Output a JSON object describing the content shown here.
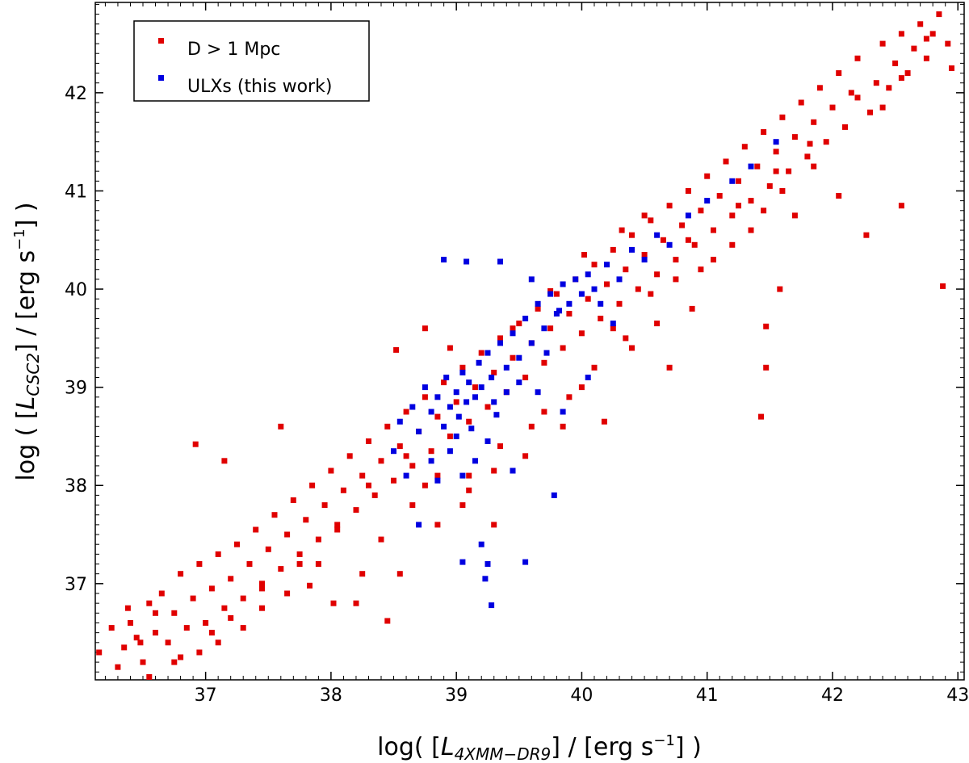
{
  "chart_data": {
    "type": "scatter",
    "xlabel": {
      "pre": "log( [",
      "var": "L",
      "sub": "4XMM−DR9",
      "mid": "] / [erg s",
      "sup": "−1",
      "post": "] )"
    },
    "ylabel": {
      "pre": "log ( [",
      "var": "L",
      "sub": "CSC2",
      "mid": "] / [erg s",
      "sup": "−1",
      "post": "] )"
    },
    "xlim": [
      36.12,
      43.05
    ],
    "ylim": [
      36.02,
      42.92
    ],
    "xticks": [
      37,
      38,
      39,
      40,
      41,
      42,
      43
    ],
    "yticks": [
      37,
      38,
      39,
      40,
      41,
      42
    ],
    "grid": false,
    "legend_position": "top-left",
    "series": [
      {
        "name": "D > 1 Mpc",
        "color": "#e00000",
        "points": [
          [
            36.15,
            36.3
          ],
          [
            36.25,
            36.55
          ],
          [
            36.3,
            36.15
          ],
          [
            36.35,
            36.35
          ],
          [
            36.4,
            36.6
          ],
          [
            36.45,
            36.45
          ],
          [
            36.5,
            36.2
          ],
          [
            36.55,
            36.8
          ],
          [
            36.6,
            36.5
          ],
          [
            36.65,
            36.9
          ],
          [
            36.7,
            36.4
          ],
          [
            36.75,
            36.7
          ],
          [
            36.8,
            37.1
          ],
          [
            36.85,
            36.55
          ],
          [
            36.9,
            36.85
          ],
          [
            36.95,
            37.2
          ],
          [
            36.92,
            38.42
          ],
          [
            37.0,
            36.6
          ],
          [
            37.05,
            36.95
          ],
          [
            37.1,
            37.3
          ],
          [
            37.15,
            36.75
          ],
          [
            37.2,
            37.05
          ],
          [
            37.25,
            37.4
          ],
          [
            37.15,
            38.25
          ],
          [
            37.3,
            36.85
          ],
          [
            37.35,
            37.2
          ],
          [
            37.4,
            37.55
          ],
          [
            37.45,
            37.0
          ],
          [
            37.5,
            37.35
          ],
          [
            37.55,
            37.7
          ],
          [
            37.6,
            37.15
          ],
          [
            37.6,
            38.6
          ],
          [
            37.65,
            37.5
          ],
          [
            37.7,
            37.85
          ],
          [
            37.75,
            37.3
          ],
          [
            37.8,
            37.65
          ],
          [
            37.85,
            38.0
          ],
          [
            37.9,
            37.45
          ],
          [
            37.95,
            37.8
          ],
          [
            38.0,
            38.15
          ],
          [
            38.05,
            37.6
          ],
          [
            38.1,
            37.95
          ],
          [
            38.15,
            38.3
          ],
          [
            38.2,
            37.75
          ],
          [
            38.25,
            38.1
          ],
          [
            38.3,
            38.45
          ],
          [
            38.35,
            37.9
          ],
          [
            38.4,
            38.25
          ],
          [
            38.45,
            38.6
          ],
          [
            38.5,
            38.05
          ],
          [
            38.55,
            38.4
          ],
          [
            38.6,
            38.75
          ],
          [
            38.65,
            38.2
          ],
          [
            38.7,
            38.55
          ],
          [
            38.75,
            38.9
          ],
          [
            38.8,
            38.35
          ],
          [
            38.85,
            38.7
          ],
          [
            38.9,
            39.05
          ],
          [
            38.95,
            38.5
          ],
          [
            39.0,
            38.85
          ],
          [
            39.05,
            39.2
          ],
          [
            39.1,
            38.65
          ],
          [
            39.15,
            39.0
          ],
          [
            39.2,
            39.35
          ],
          [
            39.25,
            38.8
          ],
          [
            39.3,
            39.15
          ],
          [
            39.35,
            39.5
          ],
          [
            39.4,
            38.95
          ],
          [
            39.45,
            39.3
          ],
          [
            39.5,
            39.65
          ],
          [
            39.55,
            39.1
          ],
          [
            39.6,
            39.45
          ],
          [
            39.65,
            39.8
          ],
          [
            39.7,
            39.25
          ],
          [
            39.75,
            39.6
          ],
          [
            39.8,
            39.95
          ],
          [
            39.85,
            39.4
          ],
          [
            39.9,
            39.75
          ],
          [
            39.95,
            40.1
          ],
          [
            40.0,
            39.55
          ],
          [
            40.05,
            39.9
          ],
          [
            40.1,
            40.25
          ],
          [
            40.15,
            39.7
          ],
          [
            40.2,
            40.05
          ],
          [
            40.25,
            40.4
          ],
          [
            40.3,
            39.85
          ],
          [
            40.35,
            40.2
          ],
          [
            40.4,
            40.55
          ],
          [
            40.45,
            40.0
          ],
          [
            40.5,
            40.35
          ],
          [
            40.55,
            40.7
          ],
          [
            40.6,
            40.15
          ],
          [
            40.65,
            40.5
          ],
          [
            40.7,
            40.85
          ],
          [
            40.75,
            40.3
          ],
          [
            40.8,
            40.65
          ],
          [
            40.85,
            41.0
          ],
          [
            40.9,
            40.45
          ],
          [
            40.95,
            40.8
          ],
          [
            41.0,
            41.15
          ],
          [
            41.05,
            40.6
          ],
          [
            41.1,
            40.95
          ],
          [
            41.15,
            41.3
          ],
          [
            41.2,
            40.75
          ],
          [
            41.25,
            41.1
          ],
          [
            41.3,
            41.45
          ],
          [
            41.35,
            40.9
          ],
          [
            41.4,
            41.25
          ],
          [
            41.45,
            41.6
          ],
          [
            41.5,
            41.05
          ],
          [
            41.55,
            41.4
          ],
          [
            41.6,
            41.75
          ],
          [
            41.65,
            41.2
          ],
          [
            41.7,
            41.55
          ],
          [
            41.75,
            41.9
          ],
          [
            41.8,
            41.35
          ],
          [
            41.85,
            41.7
          ],
          [
            41.9,
            42.05
          ],
          [
            41.95,
            41.5
          ],
          [
            42.0,
            41.85
          ],
          [
            42.05,
            42.2
          ],
          [
            42.1,
            41.65
          ],
          [
            42.15,
            42.0
          ],
          [
            42.2,
            42.35
          ],
          [
            42.3,
            41.8
          ],
          [
            42.35,
            42.1
          ],
          [
            42.4,
            42.5
          ],
          [
            42.45,
            42.05
          ],
          [
            42.5,
            42.3
          ],
          [
            42.55,
            42.6
          ],
          [
            42.6,
            42.2
          ],
          [
            42.65,
            42.45
          ],
          [
            42.7,
            42.7
          ],
          [
            42.75,
            42.35
          ],
          [
            42.8,
            42.6
          ],
          [
            42.85,
            42.8
          ],
          [
            42.92,
            42.5
          ],
          [
            42.95,
            42.25
          ],
          [
            42.88,
            40.03
          ],
          [
            42.55,
            40.85
          ],
          [
            42.27,
            40.55
          ],
          [
            42.05,
            40.95
          ],
          [
            41.7,
            40.75
          ],
          [
            41.58,
            40.0
          ],
          [
            41.47,
            39.62
          ],
          [
            41.47,
            39.2
          ],
          [
            41.43,
            38.7
          ],
          [
            40.88,
            39.8
          ],
          [
            40.7,
            39.2
          ],
          [
            40.35,
            39.5
          ],
          [
            40.18,
            38.65
          ],
          [
            40.1,
            39.2
          ],
          [
            39.9,
            38.9
          ],
          [
            39.6,
            38.6
          ],
          [
            39.35,
            38.4
          ],
          [
            39.1,
            38.1
          ],
          [
            38.75,
            38.0
          ],
          [
            38.4,
            37.45
          ],
          [
            38.25,
            37.1
          ],
          [
            38.2,
            36.8
          ],
          [
            37.9,
            37.2
          ],
          [
            37.65,
            36.9
          ],
          [
            37.45,
            36.75
          ],
          [
            37.3,
            36.55
          ],
          [
            37.1,
            36.4
          ],
          [
            36.95,
            36.3
          ],
          [
            36.75,
            36.2
          ],
          [
            36.55,
            36.05
          ],
          [
            38.45,
            36.62
          ],
          [
            38.02,
            36.8
          ],
          [
            37.83,
            36.98
          ],
          [
            38.55,
            37.1
          ],
          [
            38.75,
            39.6
          ],
          [
            38.52,
            39.38
          ],
          [
            38.95,
            39.4
          ],
          [
            39.45,
            39.6
          ],
          [
            39.75,
            39.98
          ],
          [
            40.02,
            40.35
          ],
          [
            40.32,
            40.6
          ],
          [
            40.5,
            40.75
          ],
          [
            40.85,
            40.5
          ],
          [
            41.25,
            40.85
          ],
          [
            41.55,
            41.2
          ],
          [
            41.82,
            41.48
          ],
          [
            42.2,
            41.95
          ],
          [
            38.6,
            38.3
          ],
          [
            38.3,
            38.0
          ],
          [
            38.05,
            37.55
          ],
          [
            37.75,
            37.2
          ],
          [
            37.45,
            36.95
          ],
          [
            37.2,
            36.65
          ],
          [
            37.05,
            36.5
          ],
          [
            36.8,
            36.25
          ],
          [
            36.6,
            36.7
          ],
          [
            36.48,
            36.4
          ],
          [
            36.38,
            36.75
          ],
          [
            38.85,
            37.6
          ],
          [
            39.1,
            37.95
          ],
          [
            39.3,
            38.15
          ],
          [
            39.55,
            38.3
          ],
          [
            39.85,
            38.6
          ],
          [
            40.4,
            39.4
          ],
          [
            40.6,
            39.65
          ],
          [
            40.95,
            40.2
          ],
          [
            41.2,
            40.45
          ],
          [
            41.35,
            40.6
          ],
          [
            39.3,
            37.6
          ],
          [
            39.05,
            37.8
          ],
          [
            38.85,
            38.1
          ],
          [
            38.65,
            37.8
          ],
          [
            39.7,
            38.75
          ],
          [
            40.0,
            39.0
          ],
          [
            40.25,
            39.6
          ],
          [
            40.55,
            39.95
          ],
          [
            40.75,
            40.1
          ],
          [
            41.05,
            40.3
          ],
          [
            41.45,
            40.8
          ],
          [
            41.6,
            41.0
          ],
          [
            41.85,
            41.25
          ],
          [
            42.4,
            41.85
          ],
          [
            42.55,
            42.15
          ],
          [
            42.75,
            42.55
          ]
        ]
      },
      {
        "name": "ULXs (this work)",
        "color": "#0000e0",
        "points": [
          [
            38.55,
            38.65
          ],
          [
            38.65,
            38.8
          ],
          [
            38.7,
            38.55
          ],
          [
            38.75,
            39.0
          ],
          [
            38.8,
            38.75
          ],
          [
            38.85,
            38.9
          ],
          [
            38.9,
            38.6
          ],
          [
            38.92,
            39.1
          ],
          [
            38.95,
            38.8
          ],
          [
            39.0,
            38.95
          ],
          [
            39.02,
            38.7
          ],
          [
            39.05,
            39.15
          ],
          [
            39.08,
            38.85
          ],
          [
            39.1,
            39.05
          ],
          [
            39.15,
            38.9
          ],
          [
            39.18,
            39.25
          ],
          [
            39.2,
            39.0
          ],
          [
            39.25,
            39.35
          ],
          [
            39.28,
            39.1
          ],
          [
            39.3,
            38.85
          ],
          [
            39.35,
            39.45
          ],
          [
            39.4,
            39.2
          ],
          [
            39.45,
            39.55
          ],
          [
            39.5,
            39.3
          ],
          [
            39.55,
            39.7
          ],
          [
            39.6,
            39.45
          ],
          [
            39.65,
            39.85
          ],
          [
            39.7,
            39.6
          ],
          [
            39.75,
            39.95
          ],
          [
            39.8,
            39.75
          ],
          [
            39.85,
            40.05
          ],
          [
            39.9,
            39.85
          ],
          [
            39.95,
            40.1
          ],
          [
            40.0,
            39.95
          ],
          [
            40.05,
            40.15
          ],
          [
            40.1,
            40.0
          ],
          [
            40.15,
            39.85
          ],
          [
            40.2,
            40.25
          ],
          [
            40.3,
            40.1
          ],
          [
            40.4,
            40.4
          ],
          [
            40.5,
            40.3
          ],
          [
            40.6,
            40.55
          ],
          [
            40.7,
            40.45
          ],
          [
            40.85,
            40.75
          ],
          [
            41.0,
            40.9
          ],
          [
            41.2,
            41.1
          ],
          [
            41.35,
            41.25
          ],
          [
            41.55,
            41.5
          ],
          [
            38.9,
            40.3
          ],
          [
            39.08,
            40.28
          ],
          [
            39.35,
            40.28
          ],
          [
            39.6,
            40.1
          ],
          [
            39.82,
            39.78
          ],
          [
            39.25,
            38.45
          ],
          [
            39.15,
            38.25
          ],
          [
            39.05,
            38.1
          ],
          [
            38.85,
            38.05
          ],
          [
            38.7,
            37.6
          ],
          [
            39.2,
            37.4
          ],
          [
            39.25,
            37.2
          ],
          [
            39.28,
            36.78
          ],
          [
            39.23,
            37.05
          ],
          [
            39.05,
            37.22
          ],
          [
            39.55,
            37.22
          ],
          [
            39.78,
            37.9
          ],
          [
            39.45,
            38.15
          ],
          [
            39.65,
            38.95
          ],
          [
            39.85,
            38.75
          ],
          [
            40.05,
            39.1
          ],
          [
            39.4,
            38.95
          ],
          [
            39.0,
            38.5
          ],
          [
            38.8,
            38.25
          ],
          [
            38.6,
            38.1
          ],
          [
            38.5,
            38.35
          ],
          [
            38.95,
            38.35
          ],
          [
            39.12,
            38.58
          ],
          [
            39.32,
            38.72
          ],
          [
            39.5,
            39.05
          ],
          [
            39.72,
            39.35
          ],
          [
            40.25,
            39.65
          ]
        ]
      }
    ]
  }
}
